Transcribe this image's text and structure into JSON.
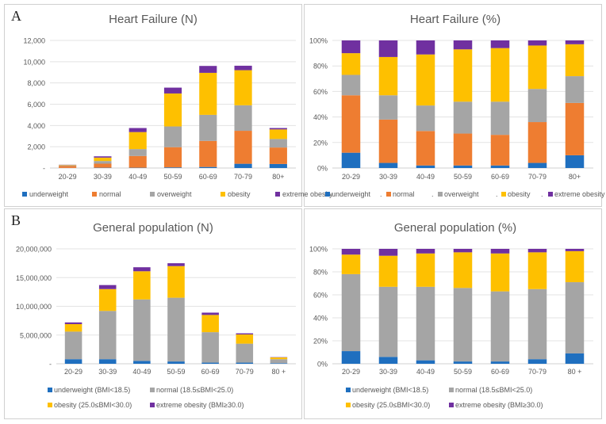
{
  "panel_labels": [
    "A",
    "B"
  ],
  "colors": {
    "underweight": "#1f6fbf",
    "normal": "#ee7d31",
    "overweight": "#a5a5a5",
    "obesity": "#fec000",
    "extreme_obesity": "#7030a0"
  },
  "chart_data": [
    {
      "type": "bar",
      "stacked": true,
      "title": "Heart Failure (N)",
      "categories": [
        "20-29",
        "30-39",
        "40-49",
        "50-59",
        "60-69",
        "70-79",
        "80+"
      ],
      "ylim": [
        0,
        12000
      ],
      "yticks": [
        "-",
        "2,000",
        "4,000",
        "6,000",
        "8,000",
        "10,000",
        "12,000"
      ],
      "series": [
        {
          "name": "underweight",
          "color": "#1f6fbf",
          "values": [
            10,
            30,
            30,
            60,
            100,
            400,
            380
          ]
        },
        {
          "name": "normal",
          "color": "#ee7d31",
          "values": [
            180,
            380,
            1100,
            1900,
            2450,
            3100,
            1550
          ]
        },
        {
          "name": "overweight",
          "color": "#a5a5a5",
          "values": [
            60,
            250,
            650,
            1950,
            2450,
            2400,
            800
          ]
        },
        {
          "name": "obesity",
          "color": "#fec000",
          "values": [
            40,
            320,
            1600,
            3100,
            3950,
            3300,
            900
          ]
        },
        {
          "name": "extreme obesity",
          "color": "#7030a0",
          "values": [
            20,
            120,
            380,
            550,
            650,
            420,
            130
          ]
        }
      ],
      "legend": "bottom"
    },
    {
      "type": "bar",
      "stacked": true,
      "title": "Heart Failure (%)",
      "categories": [
        "20-29",
        "30-39",
        "40-49",
        "50-59",
        "60-69",
        "70-79",
        "80+"
      ],
      "ylim": [
        0,
        100
      ],
      "yticks": [
        "0%",
        "20%",
        "40%",
        "60%",
        "80%",
        "100%"
      ],
      "series": [
        {
          "name": "underweight",
          "color": "#1f6fbf",
          "values": [
            12,
            4,
            2,
            2,
            2,
            4,
            10
          ]
        },
        {
          "name": "normal",
          "color": "#ee7d31",
          "values": [
            45,
            34,
            27,
            25,
            24,
            32,
            41
          ]
        },
        {
          "name": "overweight",
          "color": "#a5a5a5",
          "values": [
            16,
            19,
            20,
            25,
            26,
            26,
            21
          ]
        },
        {
          "name": "obesity",
          "color": "#fec000",
          "values": [
            17,
            30,
            40,
            41,
            42,
            34,
            25
          ]
        },
        {
          "name": "extreme obesity",
          "color": "#7030a0",
          "values": [
            10,
            13,
            11,
            7,
            6,
            4,
            3
          ]
        }
      ],
      "legend": "bottom"
    },
    {
      "type": "bar",
      "stacked": true,
      "title": "General population (N)",
      "categories": [
        "20-29",
        "30-39",
        "40-49",
        "50-59",
        "60-69",
        "70-79",
        "80 +"
      ],
      "ylim": [
        0,
        20000000
      ],
      "yticks": [
        "-",
        "5,000,000",
        "10,000,000",
        "15,000,000",
        "20,000,000"
      ],
      "series": [
        {
          "name": "underweight (BMI<18.5)",
          "color": "#1f6fbf",
          "values": [
            800000,
            800000,
            500000,
            400000,
            200000,
            200000,
            100000
          ]
        },
        {
          "name": "normal (18.5≤BMI<25.0)",
          "color": "#a5a5a5",
          "values": [
            4800000,
            8400000,
            10700000,
            11100000,
            5300000,
            3300000,
            700000
          ]
        },
        {
          "name": "obesity (25.0≤BMI<30.0)",
          "color": "#fec000",
          "values": [
            1300000,
            3800000,
            4900000,
            5500000,
            3000000,
            1600000,
            300000
          ]
        },
        {
          "name": "extreme obesity (BMI≥30.0)",
          "color": "#7030a0",
          "values": [
            300000,
            700000,
            700000,
            500000,
            400000,
            200000,
            50000
          ]
        }
      ],
      "legend": "bottom"
    },
    {
      "type": "bar",
      "stacked": true,
      "title": "General population (%)",
      "categories": [
        "20-29",
        "30-39",
        "40-49",
        "50-59",
        "60-69",
        "70-79",
        "80 +"
      ],
      "ylim": [
        0,
        100
      ],
      "yticks": [
        "0%",
        "20%",
        "40%",
        "60%",
        "80%",
        "100%"
      ],
      "series": [
        {
          "name": "underweight (BMI<18.5)",
          "color": "#1f6fbf",
          "values": [
            11,
            6,
            3,
            2,
            2,
            4,
            9
          ]
        },
        {
          "name": "normal (18.5≤BMI<25.0)",
          "color": "#a5a5a5",
          "values": [
            67,
            61,
            64,
            64,
            61,
            61,
            62
          ]
        },
        {
          "name": "obesity (25.0≤BMI<30.0)",
          "color": "#fec000",
          "values": [
            17,
            27,
            29,
            31,
            33,
            32,
            27
          ]
        },
        {
          "name": "extreme obesity (BMI≥30.0)",
          "color": "#7030a0",
          "values": [
            5,
            6,
            4,
            3,
            4,
            3,
            2
          ]
        }
      ],
      "legend": "bottom"
    }
  ]
}
